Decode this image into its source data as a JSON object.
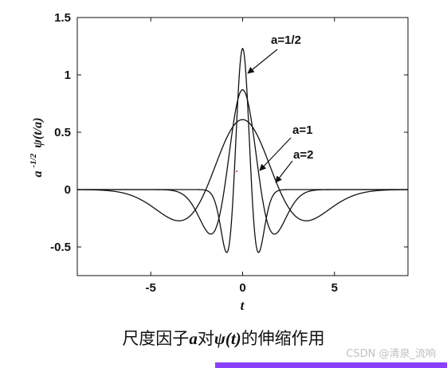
{
  "chart_data": {
    "type": "line",
    "xlabel": "t",
    "ylabel_base": "a",
    "ylabel_exp": "-1/2",
    "ylabel_func": "ψ(t/a)",
    "xlim": [
      -9,
      9
    ],
    "ylim": [
      -0.75,
      1.5
    ],
    "xticks": [
      -5,
      0,
      5
    ],
    "yticks": [
      1.5,
      1,
      0.5,
      0,
      -0.5
    ],
    "ytick_labels": [
      "1.5",
      "1",
      "0.5",
      "0",
      "-0.5"
    ],
    "xtick_labels": [
      "-5",
      "0",
      "5"
    ],
    "grid": false,
    "series": [
      {
        "name": "a=1/2",
        "scale": 0.5,
        "peak": 1.23
      },
      {
        "name": "a=1",
        "scale": 1,
        "peak": 0.87
      },
      {
        "name": "a=2",
        "scale": 2,
        "peak": 0.61
      }
    ],
    "annotations": [
      {
        "text": "a=1/2",
        "series": "a=1/2"
      },
      {
        "text": "a=1",
        "series": "a=1"
      },
      {
        "text": "a=2",
        "series": "a=2"
      }
    ]
  },
  "caption": {
    "part1": "尺度因子",
    "var_a": "a",
    "part2": "对",
    "func": "ψ(t)",
    "part3": "的伸缩作用"
  },
  "watermark": "CSDN @清泉_流响",
  "colors": {
    "line": "#111111",
    "accent_bar": "#8a3ffc"
  }
}
